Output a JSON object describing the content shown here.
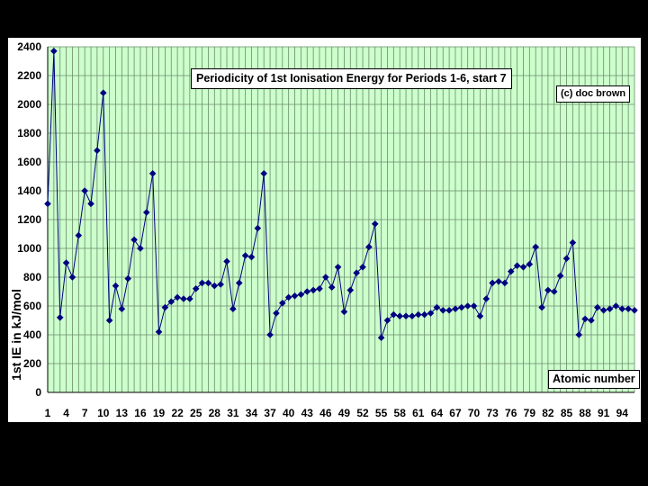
{
  "chart_data": {
    "type": "line",
    "title": "Periodicity of 1st Ionisation Energy for Periods 1-6, start 7",
    "annotation": "(c) doc brown",
    "xlabel": "Atomic number",
    "ylabel": "1st IE in kJ/mol",
    "x_ticks": [
      1,
      4,
      7,
      10,
      13,
      16,
      19,
      22,
      25,
      28,
      31,
      34,
      37,
      40,
      43,
      46,
      49,
      52,
      55,
      58,
      61,
      64,
      67,
      70,
      73,
      76,
      79,
      82,
      85,
      88,
      91,
      94
    ],
    "y_ticks": [
      0,
      200,
      400,
      600,
      800,
      1000,
      1200,
      1400,
      1600,
      1800,
      2000,
      2200,
      2400
    ],
    "xlim": [
      1,
      96
    ],
    "ylim": [
      0,
      2400
    ],
    "grid": true,
    "marker": "diamond",
    "series": [
      {
        "x": [
          1,
          2,
          3,
          4,
          5,
          6,
          7,
          8,
          9,
          10,
          11,
          12,
          13,
          14,
          15,
          16,
          17,
          18,
          19,
          20,
          21,
          22,
          23,
          24,
          25,
          26,
          27,
          28,
          29,
          30,
          31,
          32,
          33,
          34,
          35,
          36,
          37,
          38,
          39,
          40,
          41,
          42,
          43,
          44,
          45,
          46,
          47,
          48,
          49,
          50,
          51,
          52,
          53,
          54,
          55,
          56,
          57,
          58,
          59,
          60,
          61,
          62,
          63,
          64,
          65,
          66,
          67,
          68,
          69,
          70,
          71,
          72,
          73,
          74,
          75,
          76,
          77,
          78,
          79,
          80,
          81,
          82,
          83,
          84,
          85,
          86,
          87,
          88,
          89,
          90,
          91,
          92,
          93,
          94,
          95,
          96
        ],
        "values": [
          1310,
          2370,
          520,
          900,
          800,
          1090,
          1400,
          1310,
          1680,
          2080,
          500,
          740,
          580,
          790,
          1060,
          1000,
          1250,
          1520,
          420,
          590,
          630,
          660,
          650,
          650,
          720,
          760,
          760,
          740,
          750,
          910,
          580,
          760,
          950,
          940,
          1140,
          1520,
          400,
          550,
          620,
          660,
          670,
          680,
          700,
          710,
          720,
          800,
          730,
          870,
          560,
          710,
          830,
          870,
          1010,
          1170,
          380,
          500,
          540,
          530,
          530,
          530,
          540,
          540,
          550,
          590,
          570,
          570,
          580,
          590,
          600,
          600,
          530,
          650,
          760,
          770,
          760,
          840,
          880,
          870,
          890,
          1010,
          590,
          710,
          700,
          810,
          930,
          1040,
          400,
          510,
          500,
          590,
          570,
          580,
          600,
          580,
          580,
          570
        ]
      }
    ],
    "colors": {
      "plot_background": "#ccffcc",
      "line": "#000080",
      "marker": "#000080",
      "figure_background": "#ffffff",
      "page_background": "#000000",
      "grid": "#6e8a6e"
    }
  }
}
